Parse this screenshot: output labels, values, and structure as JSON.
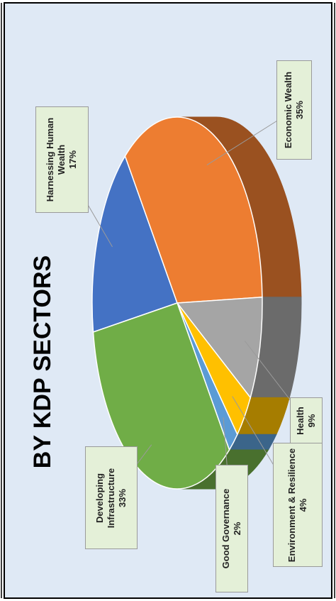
{
  "chart_data": {
    "type": "pie",
    "title": "BY KDP SECTORS",
    "categories": [
      "Harnessing Human Wealth",
      "Economic Wealth",
      "Health",
      "Environment & Resilience",
      "Good Governance",
      "Developing Infrastructure"
    ],
    "values": [
      17,
      35,
      9,
      4,
      2,
      33
    ],
    "value_labels": [
      "17%",
      "35%",
      "9%",
      "4%",
      "2%",
      "33%"
    ],
    "colors": [
      "#4472c4",
      "#ed7d31",
      "#a5a5a5",
      "#ffc000",
      "#5b9bd5",
      "#70ad47"
    ]
  }
}
